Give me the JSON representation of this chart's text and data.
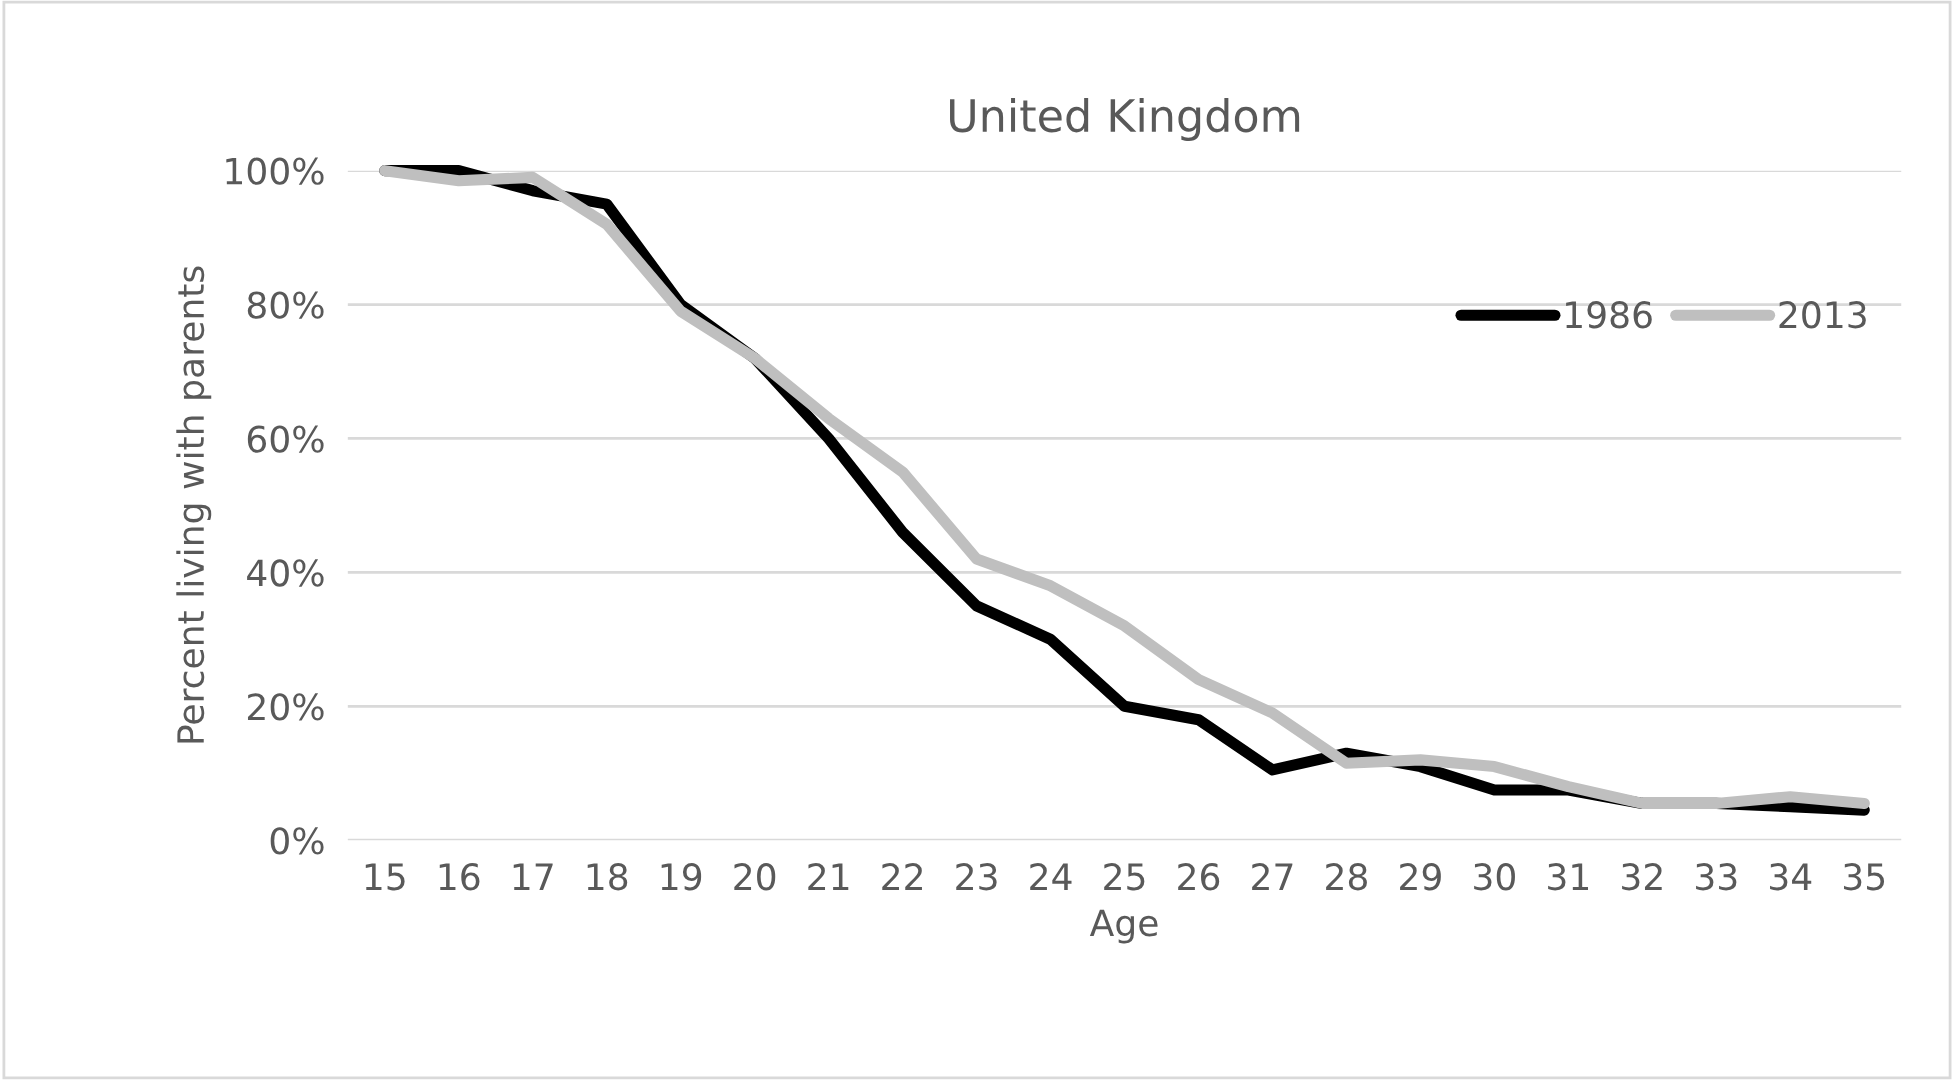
{
  "chart_data": {
    "type": "line",
    "title": "United Kingdom",
    "xlabel": "Age",
    "ylabel": "Percent living with parents",
    "categories": [
      "15",
      "16",
      "17",
      "18",
      "19",
      "20",
      "21",
      "22",
      "23",
      "24",
      "25",
      "26",
      "27",
      "28",
      "29",
      "30",
      "31",
      "32",
      "33",
      "34",
      "35"
    ],
    "series": [
      {
        "name": "1986",
        "color": "#000000",
        "values": [
          100,
          100,
          97,
          95,
          80,
          72,
          60,
          46,
          35,
          30,
          20,
          18,
          10.5,
          13,
          11,
          7.5,
          7.5,
          5.5,
          5.5,
          5,
          4.5
        ]
      },
      {
        "name": "2013",
        "color": "#bfbfbf",
        "values": [
          100,
          98.5,
          99,
          92,
          79,
          72,
          63,
          55,
          42,
          38,
          32,
          24,
          19,
          11.5,
          12,
          11,
          8,
          5.5,
          5.5,
          6.5,
          5.5
        ]
      }
    ],
    "ylim": [
      0,
      100
    ],
    "yticks": [
      {
        "value": 0,
        "label": "0%"
      },
      {
        "value": 20,
        "label": "20%"
      },
      {
        "value": 40,
        "label": "40%"
      },
      {
        "value": 60,
        "label": "60%"
      },
      {
        "value": 80,
        "label": "80%"
      },
      {
        "value": 100,
        "label": "100%"
      }
    ],
    "grid": "y",
    "legend": "right",
    "marker": "none",
    "line_style": "solid"
  }
}
